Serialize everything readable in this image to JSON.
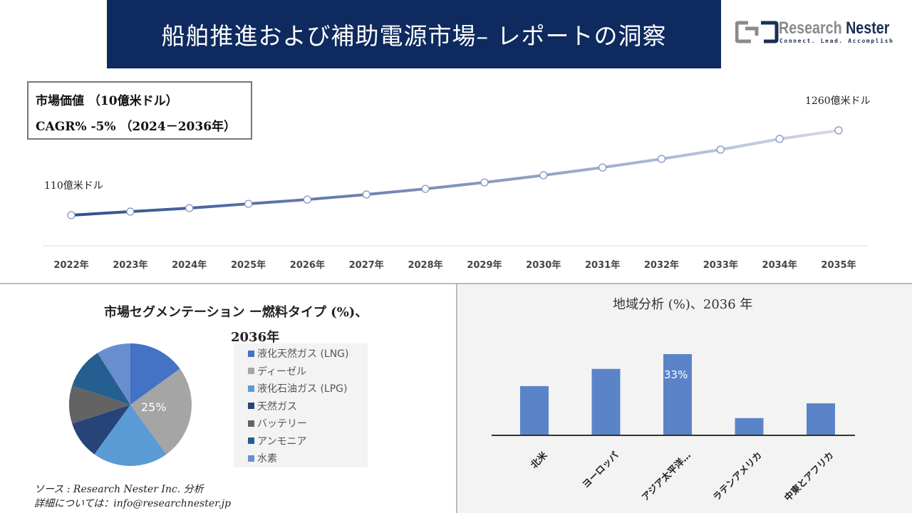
{
  "header": {
    "title": "船舶推進および補助電源市場– レポートの洞察",
    "logo_name": "Research",
    "logo_name_bold": "Nester",
    "logo_tagline": "Connect. Lead. Accomplish"
  },
  "info_box": {
    "line1": "市場価値 （10億米ドル）",
    "line2": "CAGR% -5% （2024－2036年）"
  },
  "chart_data": [
    {
      "type": "line",
      "x": [
        "2022年",
        "2023年",
        "2024年",
        "2025年",
        "2026年",
        "2027年",
        "2028年",
        "2029年",
        "2030年",
        "2031年",
        "2032年",
        "2033年",
        "2034年",
        "2035年"
      ],
      "values": [
        110,
        158,
        206,
        264,
        322,
        390,
        467,
        554,
        651,
        757,
        873,
        999,
        1144,
        1260
      ],
      "unit": "億米ドル",
      "start_label": "110億米ドル",
      "end_label": "1260億米ドル",
      "grid": false,
      "colors": {
        "start": "#2f4f8f",
        "end": "#d3d8ea"
      }
    },
    {
      "type": "pie",
      "title_line1": "市場セグメンテーション ー燃料タイプ (%)、",
      "title_line2": "2036年",
      "categories": [
        "液化天然ガス (LNG)",
        "ディーゼル",
        "液化石油ガス (LPG)",
        "天然ガス",
        "バッテリー",
        "アンモニア",
        "水素"
      ],
      "values": [
        15,
        25,
        20,
        10,
        10,
        11,
        9
      ],
      "colors": [
        "#4472c4",
        "#a5a5a5",
        "#5b9bd5",
        "#264478",
        "#636363",
        "#255e91",
        "#698ed0"
      ],
      "data_label": "25%",
      "legend": "right"
    },
    {
      "type": "bar",
      "title": "地域分析 (%)、2036 年",
      "categories": [
        "北米",
        "ヨーロッパ",
        "アジア太平洋…",
        "ラテンアメリカ",
        "中東とアフリカ"
      ],
      "values": [
        20,
        27,
        33,
        7,
        13
      ],
      "data_label": "33%",
      "color": "#5b84c8"
    }
  ],
  "footer": {
    "source": "ソース : Research Nester Inc. 分析",
    "contact": "詳細については：info@researchnester.jp"
  }
}
